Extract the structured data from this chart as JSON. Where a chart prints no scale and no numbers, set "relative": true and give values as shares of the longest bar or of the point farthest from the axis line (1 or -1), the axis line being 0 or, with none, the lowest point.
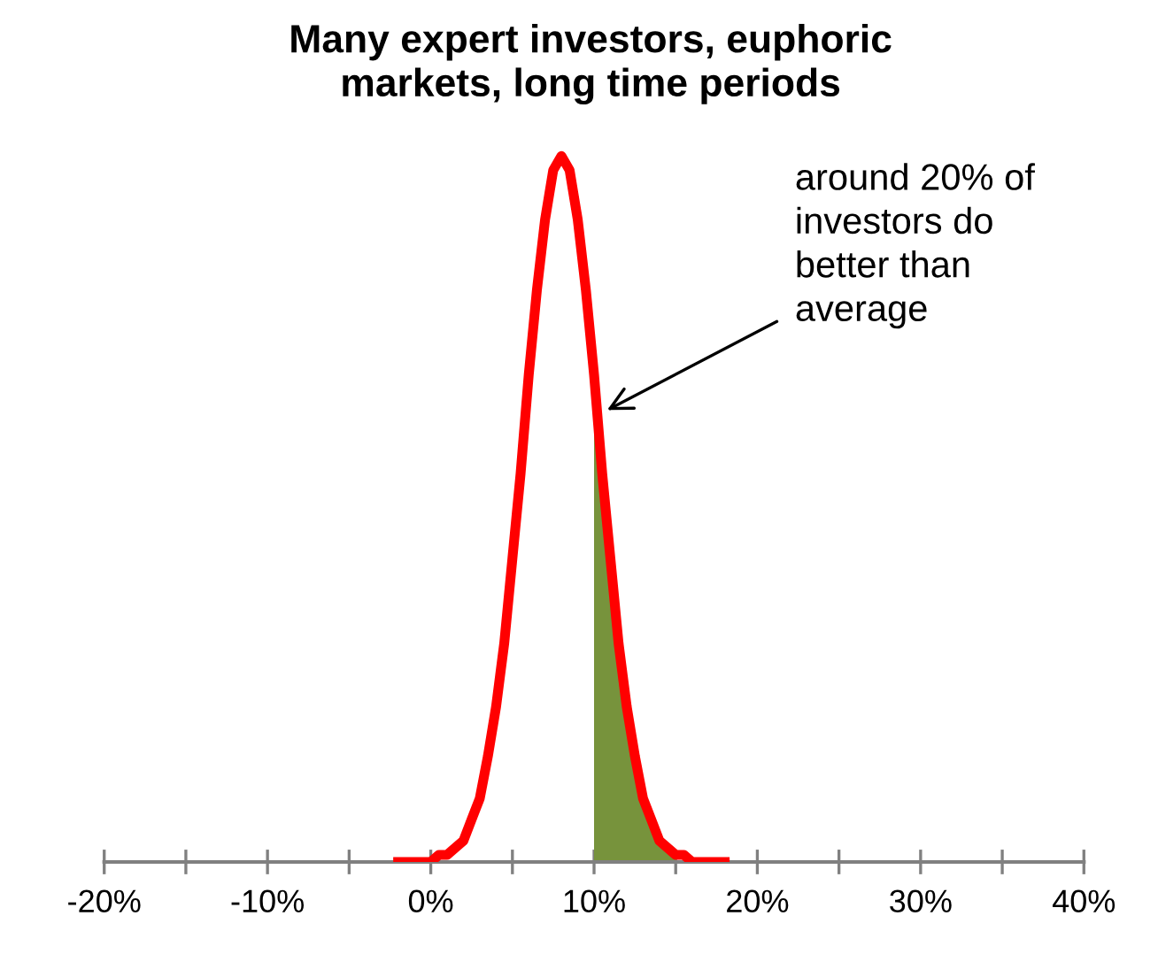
{
  "chart_data": {
    "type": "line",
    "title": "Many expert investors, euphoric\nmarkets, long time periods",
    "relative": true,
    "xlim": [
      -20,
      40
    ],
    "xticks": [
      {
        "value": -20,
        "label": "-20%"
      },
      {
        "value": -15,
        "label": null
      },
      {
        "value": -10,
        "label": "-10%"
      },
      {
        "value": -5,
        "label": null
      },
      {
        "value": 0,
        "label": "0%"
      },
      {
        "value": 5,
        "label": null
      },
      {
        "value": 10,
        "label": "10%"
      },
      {
        "value": 15,
        "label": null
      },
      {
        "value": 20,
        "label": "20%"
      },
      {
        "value": 25,
        "label": null
      },
      {
        "value": 30,
        "label": "30%"
      },
      {
        "value": 35,
        "label": null
      },
      {
        "value": 40,
        "label": "40%"
      }
    ],
    "tick_labels": "x",
    "grid": false,
    "marker": "none",
    "line_style": "solid",
    "series": [
      {
        "type": "area",
        "color": "#77933c",
        "x": [
          10,
          10.5,
          11,
          11.5,
          12,
          12.5,
          13,
          13.5,
          14,
          14.5,
          15
        ],
        "values": [
          0.69,
          0.55,
          0.43,
          0.31,
          0.22,
          0.15,
          0.09,
          0.06,
          0.03,
          0.02,
          0.01
        ]
      },
      {
        "color": "#ff0000",
        "x": [
          -2,
          -1.5,
          -1,
          -0.5,
          0,
          0.5,
          1,
          1.5,
          2,
          2.5,
          3,
          3.5,
          4,
          4.5,
          5,
          5.5,
          6,
          6.5,
          7,
          7.5,
          8,
          8.5,
          9,
          9.5,
          10,
          10.5,
          11,
          11.5,
          12,
          12.5,
          13,
          13.5,
          14,
          14.5,
          15,
          15.5,
          16,
          16.5,
          17,
          17.5,
          18
        ],
        "values": [
          0,
          0,
          0,
          0,
          0,
          0.01,
          0.01,
          0.02,
          0.03,
          0.06,
          0.09,
          0.15,
          0.22,
          0.31,
          0.43,
          0.55,
          0.69,
          0.81,
          0.91,
          0.98,
          1,
          0.98,
          0.91,
          0.81,
          0.69,
          0.55,
          0.43,
          0.31,
          0.22,
          0.15,
          0.09,
          0.06,
          0.03,
          0.02,
          0.01,
          0.01,
          0,
          0,
          0,
          0,
          0
        ]
      }
    ],
    "annotations": [
      {
        "text": "around 20% of\ninvestors do\nbetter than\naverage",
        "x": 10.8,
        "y": 0.64
      }
    ]
  }
}
